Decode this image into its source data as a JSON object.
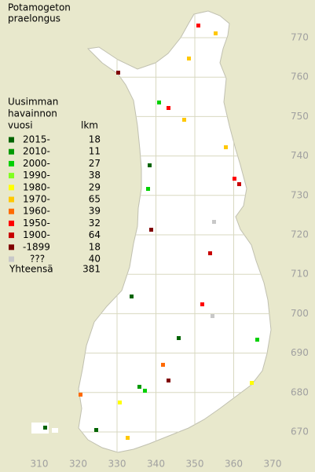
{
  "title_lines": [
    "Potamogeton",
    "praelongus"
  ],
  "legend": {
    "heading_lines": [
      "Uusimman",
      "havainnon",
      "vuosi"
    ],
    "count_heading": "lkm",
    "entries": [
      {
        "label": "2015-",
        "count": 18,
        "color": "#006400"
      },
      {
        "label": "2010-",
        "count": 11,
        "color": "#009a00"
      },
      {
        "label": "2000-",
        "count": 27,
        "color": "#00d000"
      },
      {
        "label": "1990-",
        "count": 38,
        "color": "#80ff20"
      },
      {
        "label": "1980-",
        "count": 29,
        "color": "#ffff00"
      },
      {
        "label": "1970-",
        "count": 65,
        "color": "#ffc800"
      },
      {
        "label": "1960-",
        "count": 39,
        "color": "#ff6a00"
      },
      {
        "label": "1950-",
        "count": 32,
        "color": "#ff0000"
      },
      {
        "label": "1900-",
        "count": 64,
        "color": "#c80000"
      },
      {
        "label": "-1899",
        "count": 18,
        "color": "#800000"
      },
      {
        "label": "???",
        "count": 40,
        "color": "#c8c8c8"
      }
    ],
    "total_label": "Yhteensä",
    "total": 381
  },
  "map": {
    "xticks": [
      310,
      320,
      330,
      340,
      350,
      360,
      370
    ],
    "yticks": [
      670,
      680,
      690,
      700,
      710,
      720,
      730,
      740,
      750,
      760,
      770
    ]
  }
}
